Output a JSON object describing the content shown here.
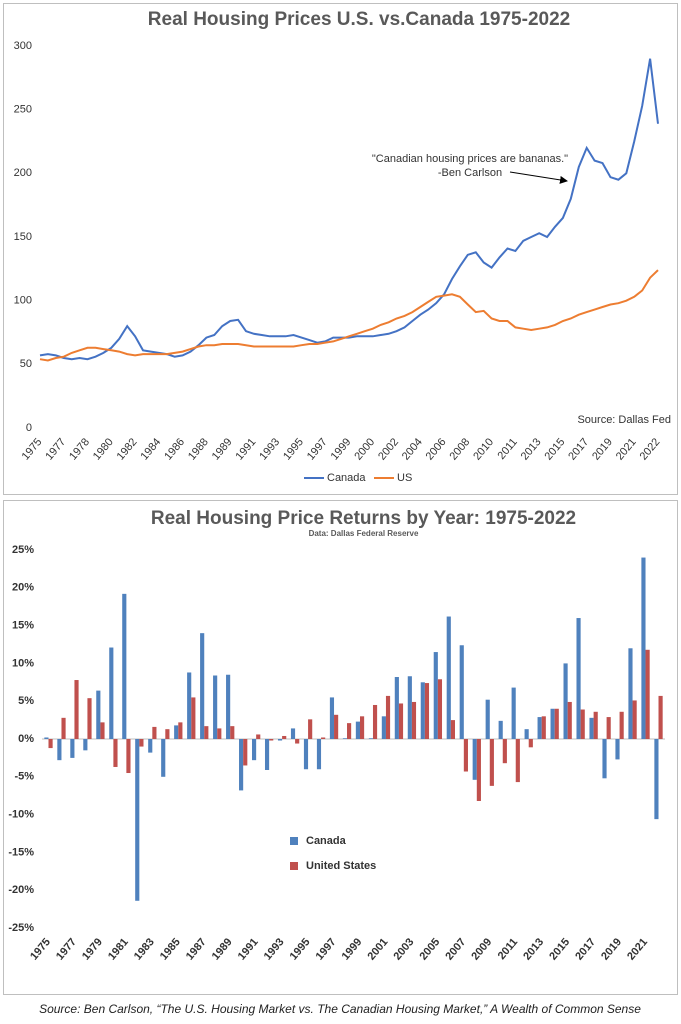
{
  "chart_data": [
    {
      "type": "line",
      "title": "Real Housing Prices U.S. vs.Canada 1975-2022",
      "categories": [
        "1975",
        null,
        null,
        "1977",
        null,
        null,
        "1978",
        null,
        null,
        "1980",
        null,
        null,
        "1982",
        null,
        null,
        "1984",
        null,
        null,
        "1986",
        null,
        null,
        "1988",
        null,
        null,
        "1989",
        null,
        null,
        "1991",
        null,
        null,
        "1993",
        null,
        null,
        "1995",
        null,
        null,
        "1997",
        null,
        null,
        "1999",
        null,
        null,
        "2000",
        null,
        null,
        "2002",
        null,
        null,
        "2004",
        null,
        null,
        "2006",
        null,
        null,
        "2008",
        null,
        null,
        "2010",
        null,
        null,
        "2011",
        null,
        null,
        "2013",
        null,
        null,
        "2015",
        null,
        null,
        "2017",
        null,
        null,
        "2019",
        null,
        null,
        "2021",
        null,
        null,
        "2022"
      ],
      "series": [
        {
          "name": "Canada",
          "color": "#4472c4",
          "values": [
            57,
            58,
            57,
            55,
            54,
            55,
            54,
            56,
            59,
            63,
            70,
            80,
            72,
            61,
            60,
            59,
            58,
            56,
            57,
            60,
            65,
            71,
            73,
            80,
            84,
            85,
            76,
            74,
            73,
            72,
            72,
            72,
            73,
            71,
            69,
            67,
            68,
            71,
            71,
            71,
            72,
            72,
            72,
            73,
            74,
            76,
            79,
            84,
            89,
            93,
            98,
            105,
            117,
            127,
            136,
            138,
            130,
            126,
            134,
            141,
            139,
            147,
            150,
            153,
            150,
            158,
            165,
            180,
            205,
            220,
            210,
            208,
            197,
            195,
            200,
            225,
            253,
            290,
            239
          ]
        },
        {
          "name": "US",
          "color": "#ed7d31",
          "values": [
            54,
            53,
            55,
            56,
            59,
            61,
            63,
            63,
            62,
            61,
            60,
            58,
            57,
            58,
            58,
            58,
            58,
            59,
            60,
            62,
            64,
            65,
            65,
            66,
            66,
            66,
            65,
            64,
            64,
            64,
            64,
            64,
            64,
            65,
            66,
            66,
            67,
            68,
            70,
            72,
            74,
            76,
            78,
            81,
            83,
            86,
            88,
            91,
            95,
            99,
            103,
            104,
            105,
            103,
            97,
            91,
            92,
            86,
            84,
            84,
            79,
            78,
            77,
            78,
            79,
            81,
            84,
            86,
            89,
            91,
            93,
            95,
            97,
            98,
            100,
            103,
            108,
            118,
            124
          ]
        }
      ],
      "ylim": [
        0,
        300
      ],
      "yticks": [
        0,
        50,
        100,
        150,
        200,
        250,
        300
      ],
      "grid": false,
      "legend": "bottom",
      "annotation": [
        "\"Canadian housing prices are bananas.\"",
        "-Ben Carlson"
      ],
      "source": "Source: Dallas Fed"
    },
    {
      "type": "bar",
      "title": "Real Housing Price Returns by Year: 1975-2022",
      "subtitle": "Data: Dallas Federal Reserve",
      "categories": [
        "1975",
        null,
        "1977",
        null,
        "1979",
        null,
        "1981",
        null,
        "1983",
        null,
        "1985",
        null,
        "1987",
        null,
        "1989",
        null,
        "1991",
        null,
        "1993",
        null,
        "1995",
        null,
        "1997",
        null,
        "1999",
        null,
        "2001",
        null,
        "2003",
        null,
        "2005",
        null,
        "2007",
        null,
        "2009",
        null,
        "2011",
        null,
        "2013",
        null,
        "2015",
        null,
        "2017",
        null,
        "2019",
        null,
        "2021",
        null
      ],
      "series": [
        {
          "name": "Canada",
          "color": "#4f81bd",
          "values": [
            0.2,
            -2.8,
            -2.5,
            -1.5,
            6.4,
            12.1,
            19.2,
            -21.4,
            -1.8,
            -5.0,
            1.8,
            8.8,
            14.0,
            8.4,
            8.5,
            -6.8,
            -2.8,
            -4.1,
            -0.2,
            1.4,
            -4.0,
            -4.0,
            5.5,
            0.1,
            2.3,
            0.1,
            3.0,
            8.2,
            8.3,
            7.5,
            11.5,
            16.2,
            12.4,
            -5.4,
            5.2,
            2.4,
            6.8,
            1.3,
            2.9,
            4.0,
            10.0,
            16.0,
            2.8,
            -5.2,
            -2.7,
            12.0,
            24.0,
            -10.6
          ]
        },
        {
          "name": "United States",
          "color": "#c0504d",
          "values": [
            -1.2,
            2.8,
            7.8,
            5.4,
            2.2,
            -3.7,
            -4.5,
            -1.0,
            1.6,
            1.3,
            2.2,
            5.5,
            1.7,
            1.4,
            1.7,
            -3.5,
            0.6,
            -0.2,
            0.4,
            -0.6,
            2.6,
            0.2,
            3.2,
            2.1,
            3.0,
            4.5,
            5.7,
            4.7,
            4.9,
            7.4,
            7.9,
            2.5,
            -4.3,
            -8.2,
            -6.2,
            -3.2,
            -5.7,
            -1.1,
            3.0,
            4.0,
            4.9,
            3.9,
            3.6,
            2.9,
            3.6,
            5.1,
            11.8,
            5.7
          ]
        }
      ],
      "ylim": [
        -25,
        25
      ],
      "yticks": [
        {
          "value": -25,
          "label": "-25%"
        },
        {
          "value": -20,
          "label": "-20%"
        },
        {
          "value": -15,
          "label": "-15%"
        },
        {
          "value": -10,
          "label": "-10%"
        },
        {
          "value": -5,
          "label": "-5%"
        },
        {
          "value": 0,
          "label": "0%"
        },
        {
          "value": 5,
          "label": "5%"
        },
        {
          "value": 10,
          "label": "10%"
        },
        {
          "value": 15,
          "label": "15%"
        },
        {
          "value": 20,
          "label": "20%"
        },
        {
          "value": 25,
          "label": "25%"
        }
      ],
      "grid": false,
      "legend": "left"
    }
  ],
  "caption": "Source: Ben Carlson, “The U.S. Housing Market vs. The Canadian Housing Market,” A Wealth of Common Sense"
}
